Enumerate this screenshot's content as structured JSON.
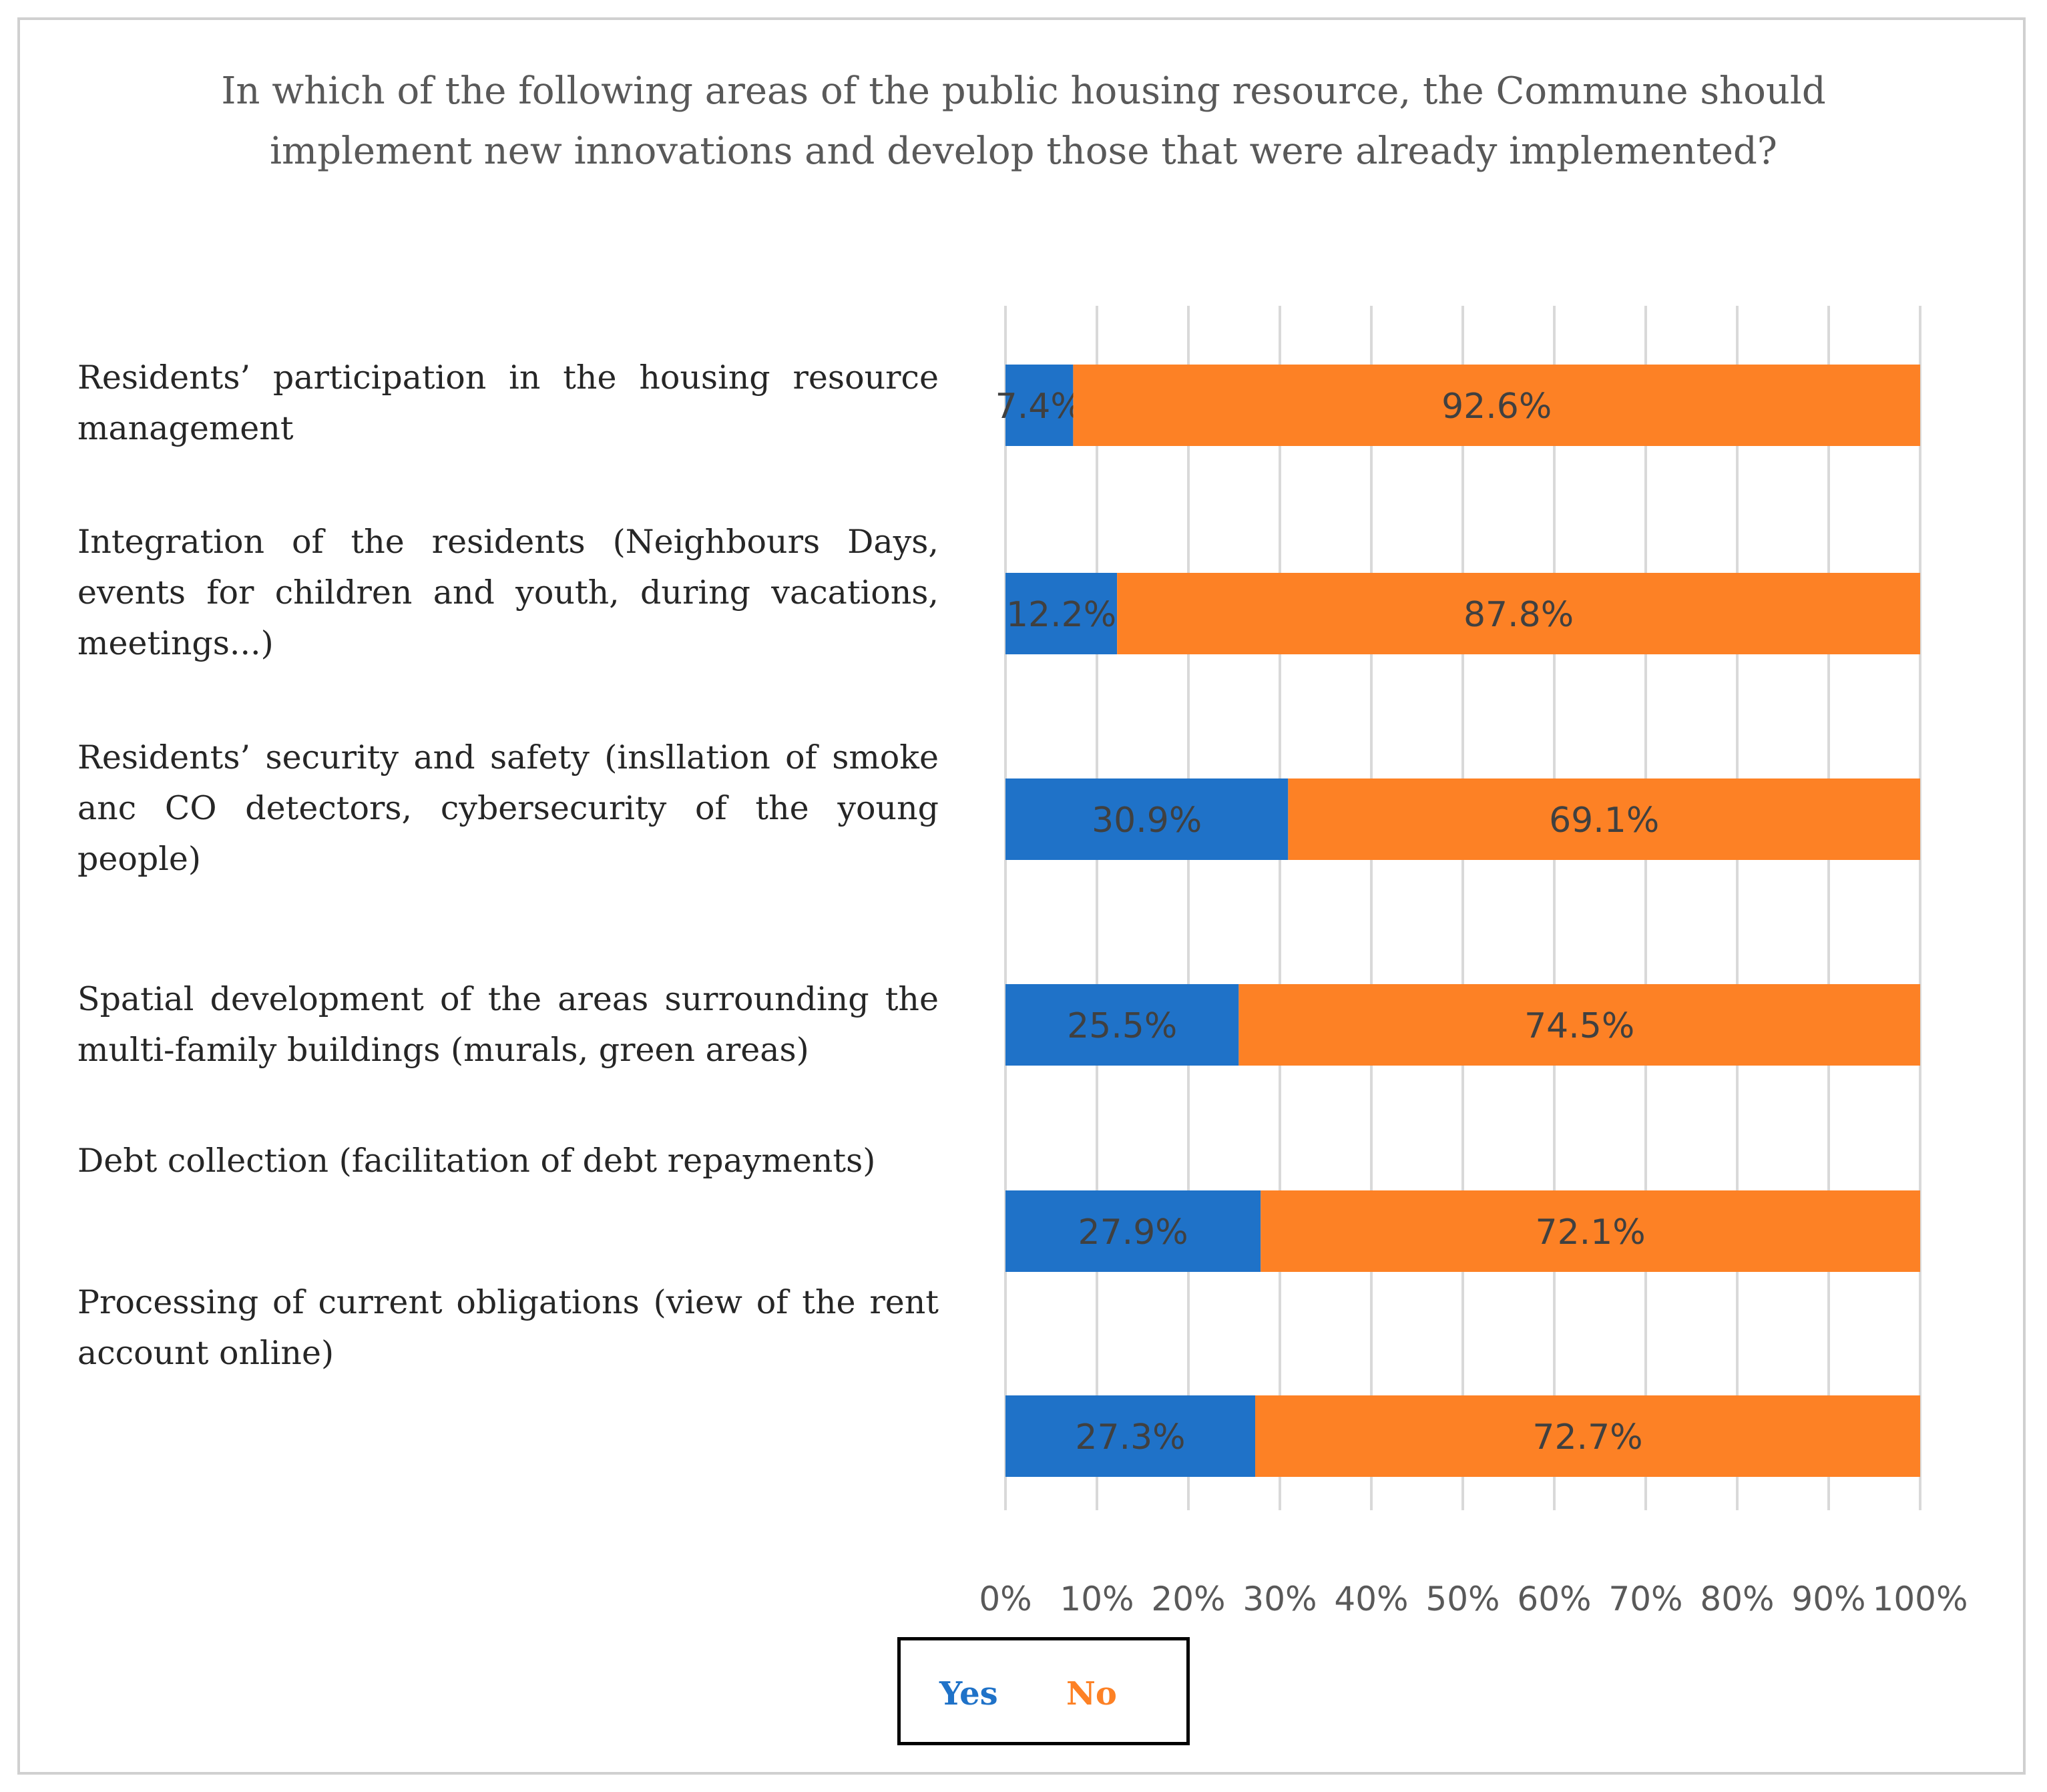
{
  "chart_data": {
    "type": "bar",
    "orientation": "horizontal",
    "stacked": "percent",
    "title": "In which of the following areas of the public housing resource, the Commune should implement new innovations and develop those that were already implemented?",
    "categories": [
      "Residents’ participation in the housing resource management",
      "Integration of the residents (Neighbours Days, events for children and youth, during vacations, meetings...)",
      "Residents’ security and safety (insllation of smoke anc CO detectors, cybersecurity of the young people)",
      "Spatial development of the areas surrounding the multi-family buildings (murals, green areas)",
      "Debt collection (facilitation of debt repayments)",
      "Processing of current obligations (view of the rent account online)"
    ],
    "series": [
      {
        "name": "Yes",
        "color": "#1f72c8",
        "values": [
          7.4,
          12.2,
          30.9,
          25.5,
          27.9,
          27.3
        ],
        "labels": [
          "7.4%",
          "12.2%",
          "30.9%",
          "25.5%",
          "27.9%",
          "27.3%"
        ]
      },
      {
        "name": "No",
        "color": "#fd8125",
        "values": [
          92.6,
          87.8,
          69.1,
          74.5,
          72.1,
          72.7
        ],
        "labels": [
          "92.6%",
          "87.8%",
          "69.1%",
          "74.5%",
          "72.1%",
          "72.7%"
        ]
      }
    ],
    "xlim": [
      0,
      100
    ],
    "xticks": [
      "0%",
      "10%",
      "20%",
      "30%",
      "40%",
      "50%",
      "60%",
      "70%",
      "80%",
      "90%",
      "100%"
    ],
    "grid": true,
    "legend_position": "bottom"
  }
}
